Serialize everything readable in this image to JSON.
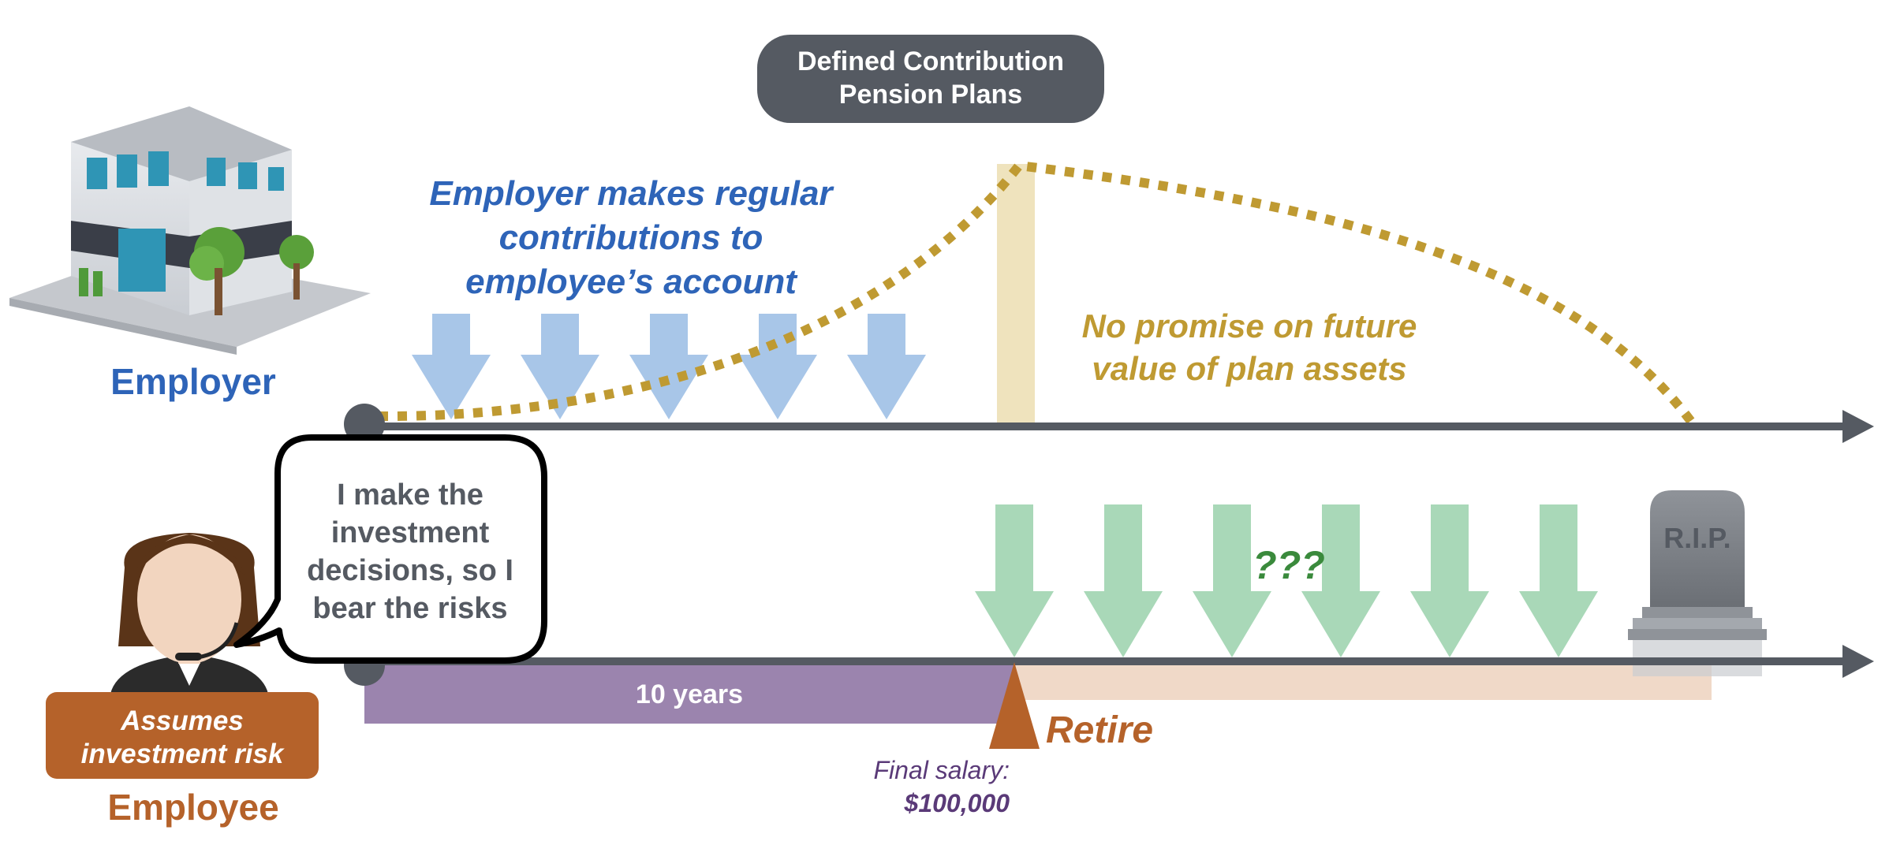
{
  "title": {
    "line1": "Defined Contribution",
    "line2": "Pension Plans"
  },
  "employer": {
    "label": "Employer",
    "contribution_text": [
      "Employer makes regular",
      "contributions to",
      "employee’s account"
    ]
  },
  "future_value_note": [
    "No promise on future",
    "value of plan assets"
  ],
  "employee": {
    "label": "Employee",
    "bubble": [
      "I make the",
      "investment",
      "decisions, so I",
      "bear the risks"
    ],
    "badge": [
      "Assumes",
      "investment risk"
    ]
  },
  "timeline": {
    "work_period_label": "10 years",
    "retire_label": "Retire",
    "final_salary_label": "Final salary:",
    "final_salary_value": "$100,000",
    "payout_uncertainty": "???",
    "tombstone_text": "R.I.P."
  },
  "colors": {
    "dark_gray": "#555a62",
    "employer_blue": "#2e64b8",
    "contribution_arrow": "#a8c6e8",
    "gold": "#bf9a32",
    "retire_band": "#efe3bd",
    "payout_arrow": "#a9d8b8",
    "employee_orange": "#b5622a",
    "work_period": "#9b84ae",
    "retirement_period": "#f0d9c8",
    "question_green": "#3a8a3c"
  },
  "icons": [
    "office-building-icon",
    "employee-headset-avatar-icon",
    "tombstone-icon"
  ]
}
